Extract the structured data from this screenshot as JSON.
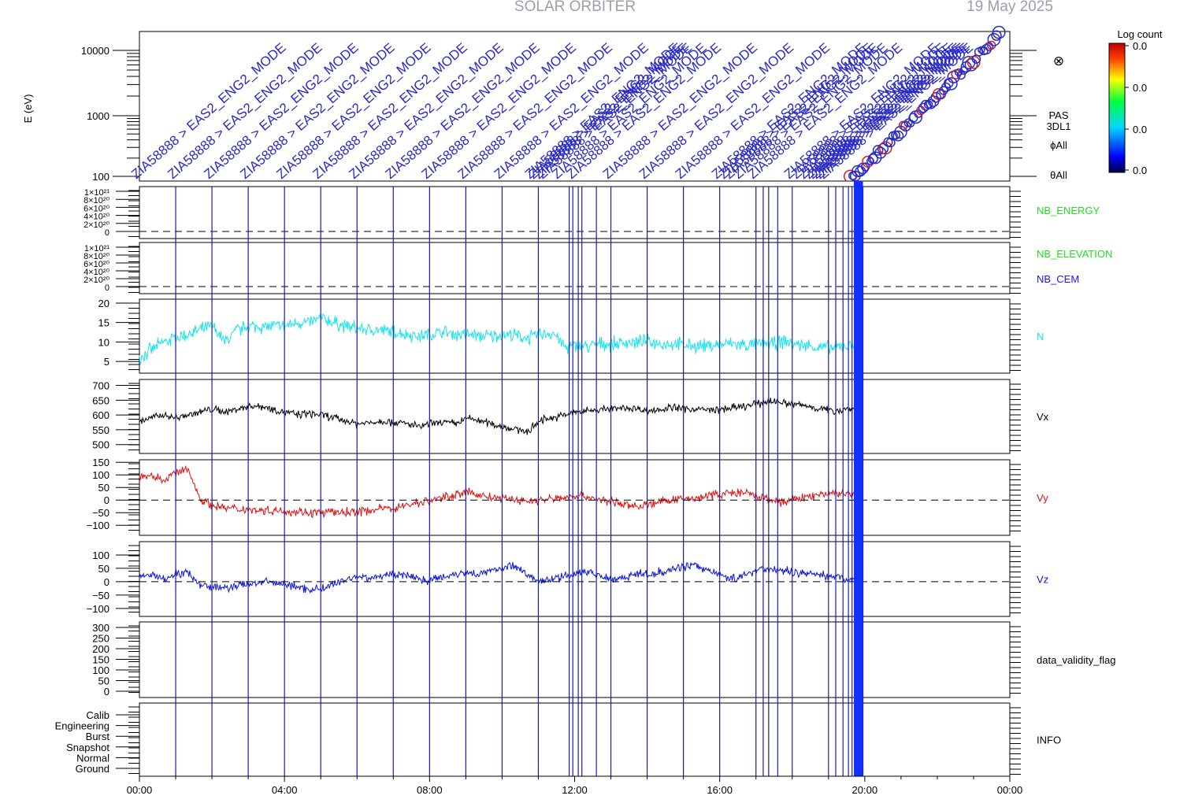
{
  "header": {
    "title": "SOLAR ORBITER",
    "date_text": "19 May 2025"
  },
  "colors": {
    "n": "#18e4ec",
    "vx": "#000000",
    "vy": "#e01010",
    "vz": "#0a14d8",
    "markers": "#1a1aa8",
    "nb_energy": "#22dd22",
    "nb_elevation": "#22dd22",
    "nb_cem": "#1a1ae0",
    "annotations": "#2a2ac8"
  },
  "colorbar": {
    "label": "Log count",
    "ticks": [
      "0.0",
      "0.0",
      "0.0",
      "0.0"
    ]
  },
  "spectrogram": {
    "ylabel": "E (eV)",
    "yticks": [
      "10000",
      "1000",
      "100"
    ],
    "labels": [
      "PAS",
      "3DL1",
      "ϕAll",
      "θAll"
    ],
    "annotation_prefix": "ZIA58888",
    "annotation_mode": "EAS2_ENG2_MODE",
    "annotation_arrow": ">"
  },
  "chart_data": {
    "type": "line",
    "x_axis": {
      "ticks": [
        "00:00",
        "04:00",
        "08:00",
        "12:00",
        "16:00",
        "20:00",
        "00:00"
      ],
      "range_hours": [
        0,
        24
      ]
    },
    "event_marker_hours": [
      1.0,
      2.0,
      3.0,
      4.0,
      5.0,
      6.0,
      7.0,
      8.0,
      9.0,
      10.0,
      11.0,
      11.85,
      11.95,
      12.1,
      12.2,
      12.6,
      13.0,
      14.0,
      15.0,
      16.0,
      17.0,
      17.2,
      17.35,
      17.6,
      18.0,
      19.0,
      19.2,
      19.4,
      19.55,
      19.65,
      19.75,
      19.85,
      19.95
    ],
    "data_end_hours": 19.8,
    "panels": [
      {
        "id": "nb_energy",
        "label": "NB_ENERGY",
        "yticks": [
          "1×10²¹",
          "8×10²⁰",
          "6×10²⁰",
          "4×10²⁰",
          "2×10²⁰",
          "0"
        ],
        "zero_dashed": true
      },
      {
        "id": "nb_elevation",
        "labels": [
          "NB_ELEVATION",
          "NB_CEM"
        ],
        "yticks": [
          "1×10²¹",
          "8×10²⁰",
          "6×10²⁰",
          "4×10²⁰",
          "2×10²⁰",
          "0"
        ],
        "zero_dashed": true
      },
      {
        "id": "n",
        "label": "N",
        "ylim": [
          2,
          21
        ],
        "yticks": [
          5,
          10,
          15,
          20
        ],
        "values": [
          6,
          8,
          10,
          11,
          12,
          13,
          14,
          10,
          13,
          14,
          14,
          14,
          14,
          15,
          15,
          16,
          15,
          14,
          13.5,
          13,
          13,
          12.5,
          12,
          11.5,
          12,
          12.5,
          12,
          12,
          11.5,
          11.5,
          12,
          11.5,
          11,
          12,
          12.5,
          8.5,
          9,
          9,
          9.5,
          9.5,
          10,
          10,
          10,
          9.5,
          9.5,
          9,
          9,
          9,
          9.5,
          9.5,
          9,
          9.5,
          9.5,
          10,
          9.5,
          9,
          8.5,
          8.5,
          9,
          9.5
        ]
      },
      {
        "id": "vx",
        "label": "Vx",
        "ylim": [
          470,
          720
        ],
        "yticks": [
          500,
          550,
          600,
          650,
          700
        ],
        "values": [
          580,
          590,
          600,
          590,
          600,
          610,
          620,
          610,
          620,
          630,
          630,
          620,
          610,
          600,
          605,
          600,
          590,
          580,
          570,
          575,
          580,
          575,
          570,
          560,
          570,
          575,
          570,
          590,
          580,
          570,
          560,
          550,
          545,
          585,
          590,
          600,
          610,
          615,
          620,
          620,
          625,
          620,
          615,
          620,
          625,
          620,
          620,
          615,
          620,
          625,
          630,
          640,
          650,
          640,
          635,
          630,
          620,
          615,
          620,
          620
        ]
      },
      {
        "id": "vy",
        "label": "Vy",
        "ylim": [
          -140,
          160
        ],
        "yticks": [
          -100,
          -50,
          0,
          50,
          100,
          150
        ],
        "zero_dashed": true,
        "values": [
          100,
          90,
          80,
          110,
          120,
          5,
          -20,
          -30,
          -35,
          -35,
          -40,
          -40,
          -45,
          -45,
          -50,
          -50,
          -48,
          -48,
          -45,
          -40,
          -35,
          -30,
          -20,
          -10,
          0,
          10,
          25,
          30,
          20,
          10,
          5,
          0,
          -5,
          0,
          5,
          10,
          20,
          10,
          0,
          -10,
          -20,
          -25,
          -15,
          -5,
          0,
          5,
          10,
          20,
          25,
          30,
          25,
          10,
          0,
          -10,
          5,
          15,
          20,
          30,
          25,
          20
        ]
      },
      {
        "id": "vz",
        "label": "Vz",
        "ylim": [
          -130,
          150
        ],
        "yticks": [
          -100,
          -50,
          0,
          50,
          100
        ],
        "zero_dashed": true,
        "values": [
          20,
          25,
          10,
          30,
          35,
          -10,
          -20,
          -25,
          -15,
          -10,
          0,
          -5,
          -10,
          -20,
          -30,
          -25,
          -10,
          10,
          20,
          15,
          20,
          30,
          25,
          10,
          5,
          20,
          30,
          35,
          30,
          40,
          55,
          60,
          20,
          0,
          10,
          20,
          30,
          40,
          20,
          10,
          20,
          30,
          25,
          40,
          50,
          60,
          55,
          40,
          20,
          10,
          30,
          50,
          45,
          40,
          35,
          30,
          25,
          20,
          15,
          0
        ]
      },
      {
        "id": "data_validity_flag",
        "label": "data_validity_flag",
        "yticks": [
          "300",
          "250",
          "200",
          "150",
          "100",
          "50",
          "0"
        ]
      },
      {
        "id": "info",
        "label": "INFO",
        "yticks": [
          "Calib",
          "Engineering",
          "Burst",
          "Snapshot",
          "Normal",
          "Ground"
        ]
      }
    ]
  }
}
